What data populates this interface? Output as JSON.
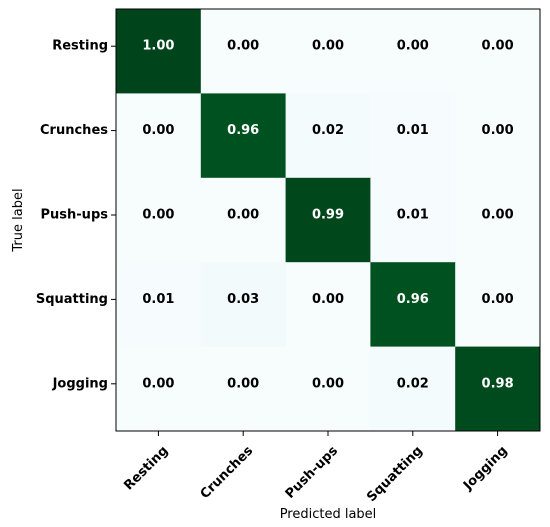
{
  "chart_data": {
    "type": "heatmap",
    "title": "",
    "xlabel": "Predicted label",
    "ylabel": "True label",
    "x_categories": [
      "Resting",
      "Crunches",
      "Push-ups",
      "Squatting",
      "Jogging"
    ],
    "y_categories": [
      "Resting",
      "Crunches",
      "Push-ups",
      "Squatting",
      "Jogging"
    ],
    "values": [
      [
        1.0,
        0.0,
        0.0,
        0.0,
        0.0
      ],
      [
        0.0,
        0.96,
        0.02,
        0.01,
        0.0
      ],
      [
        0.0,
        0.0,
        0.99,
        0.01,
        0.0
      ],
      [
        0.01,
        0.03,
        0.0,
        0.96,
        0.0
      ],
      [
        0.0,
        0.0,
        0.0,
        0.02,
        0.98
      ]
    ],
    "value_range": [
      0,
      1
    ],
    "colormap": "Greens",
    "colors": {
      "low": "#f7fcfd",
      "high": "#00441b",
      "text_on_dark": "#ffffff",
      "text_on_light": "#000000",
      "frame": "#000000"
    },
    "grid": false,
    "legend": "none"
  }
}
